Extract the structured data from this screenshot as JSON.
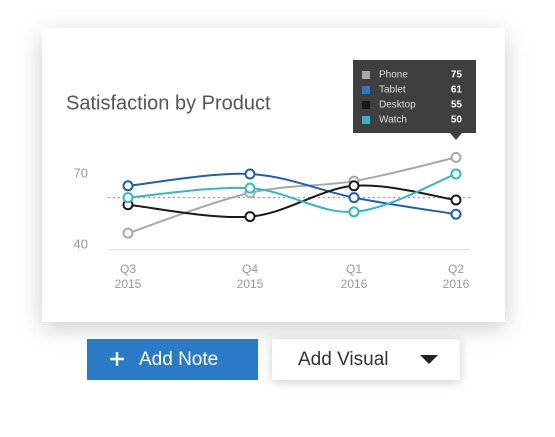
{
  "chart_data": {
    "type": "line",
    "title": "Satisfaction by Product",
    "categories": [
      "Q3",
      "Q4",
      "Q1",
      "Q2"
    ],
    "category_years": [
      "2015",
      "2015",
      "2016",
      "2016"
    ],
    "series": [
      {
        "name": "Phone",
        "color": "#a8a8a8",
        "values": [
          45,
          62,
          67,
          77
        ]
      },
      {
        "name": "Tablet",
        "color": "#1f5fb0",
        "values": [
          65,
          70,
          60,
          53
        ]
      },
      {
        "name": "Desktop",
        "color": "#1a1a1a",
        "values": [
          57,
          52,
          65,
          59
        ]
      },
      {
        "name": "Watch",
        "color": "#2fb8c8",
        "values": [
          60,
          64,
          54,
          70
        ]
      }
    ],
    "ylim": [
      38,
      80
    ],
    "yticks": [
      40,
      70
    ],
    "reference_line": 60,
    "tooltip": {
      "rows": [
        {
          "name": "Phone",
          "color": "#a8a8a8",
          "value": 75
        },
        {
          "name": "Tablet",
          "color": "#2b78c8",
          "value": 61
        },
        {
          "name": "Desktop",
          "color": "#1a1a1a",
          "value": 55
        },
        {
          "name": "Watch",
          "color": "#2fb8c8",
          "value": 50
        }
      ]
    }
  },
  "buttons": {
    "add_note": "Add Note",
    "add_visual": "Add Visual"
  }
}
